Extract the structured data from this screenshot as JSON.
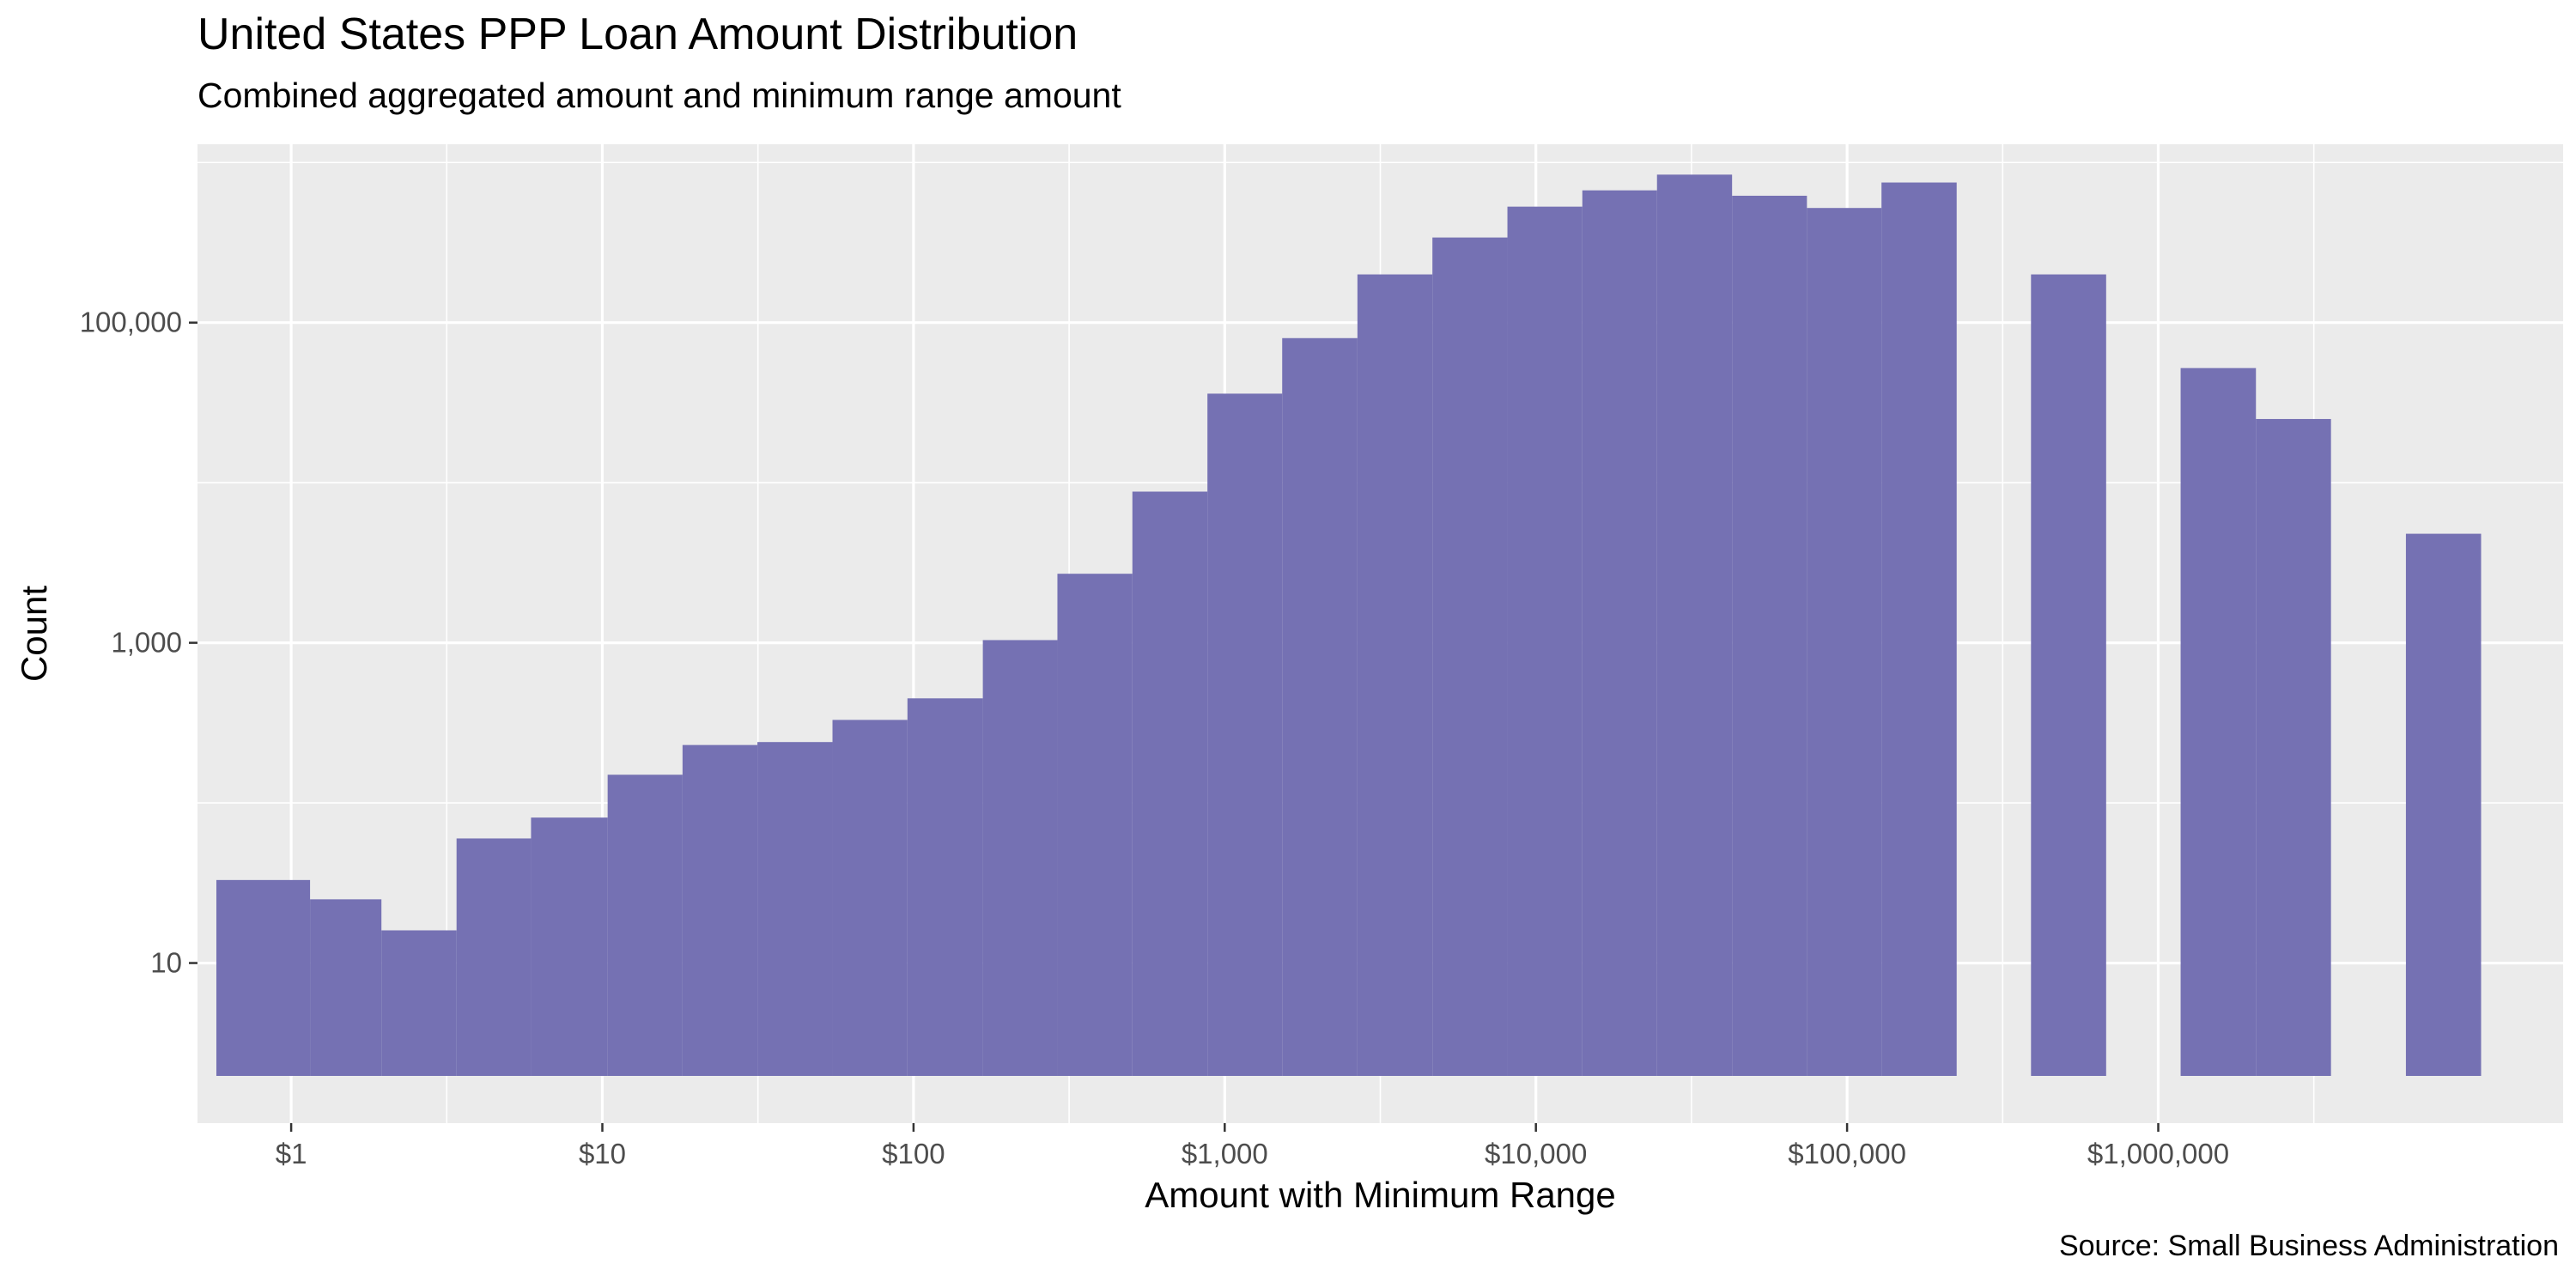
{
  "chart_data": {
    "type": "bar",
    "title": "United States PPP Loan Amount Distribution",
    "subtitle": "Combined aggregated amount and minimum range amount",
    "caption": "Source: Small Business Administration",
    "xlabel": "Amount with Minimum Range",
    "ylabel": "Count",
    "x_scale": "log10",
    "y_scale": "log10",
    "xlim": [
      0.5,
      20000000
    ],
    "ylim": [
      1,
      1300000
    ],
    "x_ticks": [
      {
        "value": 1,
        "label": "$1"
      },
      {
        "value": 10,
        "label": "$10"
      },
      {
        "value": 100,
        "label": "$100"
      },
      {
        "value": 1000,
        "label": "$1,000"
      },
      {
        "value": 10000,
        "label": "$10,000"
      },
      {
        "value": 100000,
        "label": "$100,000"
      },
      {
        "value": 1000000,
        "label": "$1,000,000"
      }
    ],
    "y_ticks": [
      {
        "value": 10,
        "label": "10"
      },
      {
        "value": 1000,
        "label": "1,000"
      },
      {
        "value": 100000,
        "label": "100,000"
      }
    ],
    "grid": true,
    "fill_color": "#7571b3",
    "panel_background": "#ebebeb",
    "bins": [
      {
        "x0": 0.575,
        "x1": 1.15,
        "count": 33
      },
      {
        "x0": 1.15,
        "x1": 1.95,
        "count": 25
      },
      {
        "x0": 1.95,
        "x1": 3.4,
        "count": 16
      },
      {
        "x0": 3.4,
        "x1": 5.9,
        "count": 60
      },
      {
        "x0": 5.9,
        "x1": 10.4,
        "count": 81
      },
      {
        "x0": 10.4,
        "x1": 18.1,
        "count": 150
      },
      {
        "x0": 18.1,
        "x1": 31.5,
        "count": 230
      },
      {
        "x0": 31.5,
        "x1": 54.9,
        "count": 240
      },
      {
        "x0": 54.9,
        "x1": 95.6,
        "count": 330
      },
      {
        "x0": 95.6,
        "x1": 167,
        "count": 450
      },
      {
        "x0": 167,
        "x1": 290,
        "count": 1040
      },
      {
        "x0": 290,
        "x1": 505,
        "count": 2700
      },
      {
        "x0": 505,
        "x1": 880,
        "count": 8800
      },
      {
        "x0": 880,
        "x1": 1530,
        "count": 36000
      },
      {
        "x0": 1530,
        "x1": 2670,
        "count": 80000
      },
      {
        "x0": 2670,
        "x1": 4650,
        "count": 200000
      },
      {
        "x0": 4650,
        "x1": 8100,
        "count": 340000
      },
      {
        "x0": 8100,
        "x1": 14100,
        "count": 530000
      },
      {
        "x0": 14100,
        "x1": 24500,
        "count": 670000
      },
      {
        "x0": 24500,
        "x1": 42700,
        "count": 840000
      },
      {
        "x0": 42700,
        "x1": 74300,
        "count": 620000
      },
      {
        "x0": 74300,
        "x1": 129000,
        "count": 520000
      },
      {
        "x0": 129000,
        "x1": 225000,
        "count": 750000
      },
      {
        "x0": 390000,
        "x1": 680000,
        "count": 200000
      },
      {
        "x0": 1180000,
        "x1": 2060000,
        "count": 52000
      },
      {
        "x0": 2060000,
        "x1": 3590000,
        "count": 25000
      },
      {
        "x0": 6250000,
        "x1": 10900000,
        "count": 4800
      }
    ]
  }
}
